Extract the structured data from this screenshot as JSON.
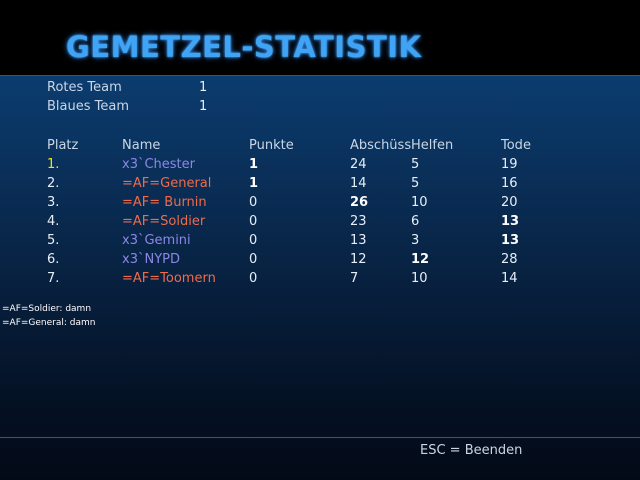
{
  "title": "GEMETZEL-STATISTIK",
  "teams": [
    {
      "label": "Rotes Team",
      "score": "1"
    },
    {
      "label": "Blaues Team",
      "score": "1"
    }
  ],
  "columns": {
    "rank": "Platz",
    "name": "Name",
    "points": "Punkte",
    "kills": "Abschüss",
    "assists": "Helfen",
    "deaths": "Tode"
  },
  "players": [
    {
      "rank": "1.",
      "name": "x3`Chester",
      "team": "blue",
      "points": "1",
      "kills": "24",
      "assists": "5",
      "deaths": "19"
    },
    {
      "rank": "2.",
      "name": "=AF=General",
      "team": "red",
      "points": "1",
      "kills": "14",
      "assists": "5",
      "deaths": "16"
    },
    {
      "rank": "3.",
      "name": "=AF= Burnin",
      "team": "red",
      "points": "0",
      "kills": "26",
      "assists": "10",
      "deaths": "20"
    },
    {
      "rank": "4.",
      "name": "=AF=Soldier",
      "team": "red",
      "points": "0",
      "kills": "23",
      "assists": "6",
      "deaths": "13"
    },
    {
      "rank": "5.",
      "name": "x3`Gemini",
      "team": "blue",
      "points": "0",
      "kills": "13",
      "assists": "3",
      "deaths": "13"
    },
    {
      "rank": "6.",
      "name": "x3`NYPD",
      "team": "blue",
      "points": "0",
      "kills": "12",
      "assists": "12",
      "deaths": "28"
    },
    {
      "rank": "7.",
      "name": "=AF=Toomern",
      "team": "red",
      "points": "0",
      "kills": "7",
      "assists": "10",
      "deaths": "14"
    }
  ],
  "chat": [
    "=AF=Soldier: damn",
    "=AF=General: damn"
  ],
  "footer": {
    "esc_hint": "ESC = Beenden"
  },
  "colors": {
    "title": "#3fa4f4",
    "first_place": "#f2e400",
    "team_blue": "#8c87e6",
    "team_red": "#ef6b4a"
  }
}
